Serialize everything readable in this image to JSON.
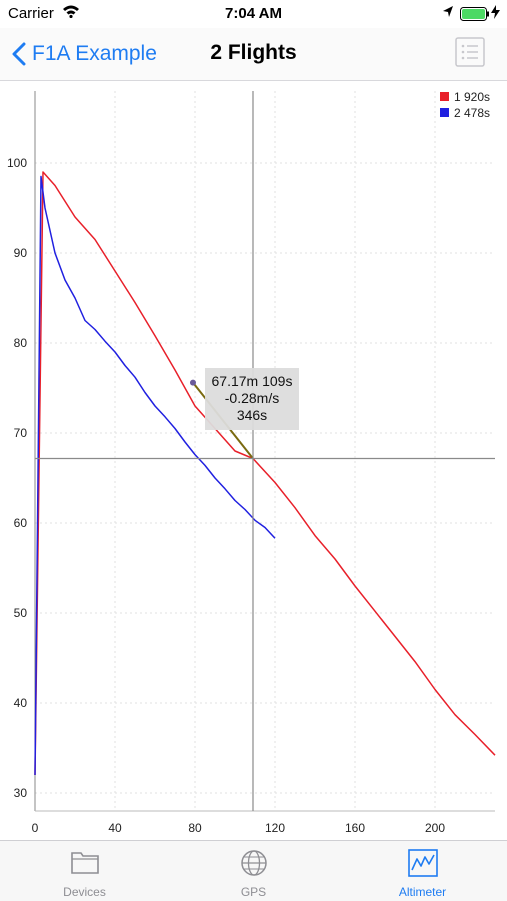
{
  "status": {
    "carrier": "Carrier",
    "time": "7:04 AM"
  },
  "nav": {
    "back_label": "F1A Example",
    "title": "2 Flights"
  },
  "tooltip": {
    "line1": "67.17m 109s",
    "line2": "-0.28m/s",
    "line3": "346s"
  },
  "tabs": [
    {
      "label": "Devices",
      "icon": "folder-icon"
    },
    {
      "label": "GPS",
      "icon": "globe-icon"
    },
    {
      "label": "Altimeter",
      "icon": "chart-icon",
      "active": true
    }
  ],
  "colors": {
    "accent": "#1e7cf2",
    "series1": "#e8202a",
    "series2": "#2020e0",
    "highlight": "#7a6a10"
  },
  "chart_data": {
    "type": "line",
    "title": "",
    "xlabel": "",
    "ylabel": "",
    "xlim": [
      0,
      230
    ],
    "ylim": [
      28,
      108
    ],
    "xticks": [
      0,
      40,
      80,
      120,
      160,
      200
    ],
    "yticks": [
      30,
      40,
      50,
      60,
      70,
      80,
      90,
      100
    ],
    "legend": "top-right",
    "series": [
      {
        "name": "1 920s",
        "color": "#e8202a",
        "x": [
          0,
          4,
          10,
          20,
          24,
          30,
          40,
          50,
          60,
          70,
          80,
          90,
          100,
          109,
          120,
          130,
          140,
          150,
          160,
          170,
          180,
          190,
          200,
          210,
          220,
          230
        ],
        "y": [
          32,
          99,
          97.5,
          94,
          93,
          91.5,
          88,
          84.5,
          80.8,
          77,
          73,
          70.5,
          68,
          67.17,
          64.5,
          61.7,
          58.6,
          56,
          53,
          50.2,
          47.4,
          44.6,
          41.5,
          38.7,
          36.5,
          34.2
        ]
      },
      {
        "name": "2 478s",
        "color": "#2020e0",
        "x": [
          0,
          3,
          5,
          10,
          15,
          20,
          25,
          30,
          35,
          40,
          45,
          50,
          55,
          60,
          65,
          70,
          75,
          80,
          85,
          90,
          95,
          100,
          105,
          110,
          115,
          120
        ],
        "y": [
          32,
          98.5,
          95,
          90,
          87,
          85,
          82.5,
          81.5,
          80.2,
          79,
          77.5,
          76.2,
          74.5,
          73,
          71.8,
          70.5,
          69,
          67.6,
          66.4,
          65,
          63.8,
          62.5,
          61.5,
          60.3,
          59.5,
          58.3
        ]
      }
    ],
    "crosshair": {
      "x": 109,
      "y": 67.17
    },
    "highlight_segment": {
      "x": [
        79,
        109
      ],
      "y": [
        75.6,
        67.17
      ]
    }
  }
}
